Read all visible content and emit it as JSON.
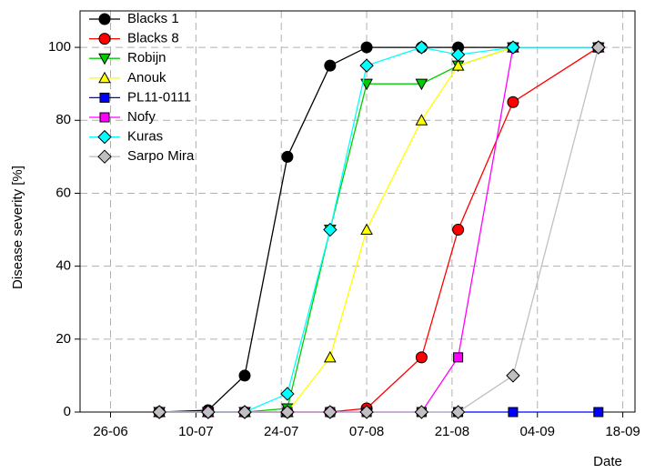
{
  "chart_data": {
    "type": "line",
    "x_label": "Date",
    "y_label": "Disease severity [%]",
    "x": [
      "04-07",
      "12-07",
      "18-07",
      "25-07",
      "01-08",
      "07-08",
      "16-08",
      "22-08",
      "31-08",
      "14-09"
    ],
    "series": [
      {
        "name": "Blacks 1",
        "color": "#000000",
        "marker": "circle",
        "values": [
          0,
          0.5,
          10,
          70,
          95,
          100,
          100,
          100,
          100,
          100
        ]
      },
      {
        "name": "Blacks 8",
        "color": "#ff0000",
        "marker": "circle",
        "values": [
          0,
          0,
          0,
          0,
          0,
          1,
          15,
          50,
          85,
          100
        ]
      },
      {
        "name": "Robijn",
        "color": "#00cc00",
        "marker": "triangle-down",
        "values": [
          0,
          0,
          0,
          1,
          50,
          90,
          90,
          95,
          100,
          100
        ]
      },
      {
        "name": "Anouk",
        "color": "#ffff00",
        "marker": "triangle-up",
        "values": [
          0,
          0,
          0,
          0,
          15,
          50,
          80,
          95,
          100,
          100
        ]
      },
      {
        "name": "PL11-0111",
        "color": "#0000ff",
        "marker": "square",
        "values": [
          0,
          0,
          0,
          0,
          0,
          0,
          0,
          0,
          0,
          0
        ]
      },
      {
        "name": "Nofy",
        "color": "#ff00ff",
        "marker": "square",
        "values": [
          0,
          0,
          0,
          0,
          0,
          0,
          0,
          15,
          100,
          100
        ]
      },
      {
        "name": "Kuras",
        "color": "#00ffff",
        "marker": "diamond",
        "values": [
          0,
          0,
          0,
          5,
          50,
          95,
          100,
          98,
          100,
          100
        ]
      },
      {
        "name": "Sarpo Mira",
        "color": "#c0c0c0",
        "marker": "diamond",
        "values": [
          0,
          0,
          0,
          0,
          0,
          0,
          0,
          0,
          10,
          100
        ]
      }
    ],
    "xlim": [
      "21-06",
      "20-09"
    ],
    "xticks": [
      "26-06",
      "10-07",
      "24-07",
      "07-08",
      "21-08",
      "04-09",
      "18-09"
    ],
    "ylim": [
      0,
      110
    ],
    "yticks": [
      0,
      20,
      40,
      60,
      80,
      100
    ],
    "grid": true,
    "legend": "upper-left"
  }
}
